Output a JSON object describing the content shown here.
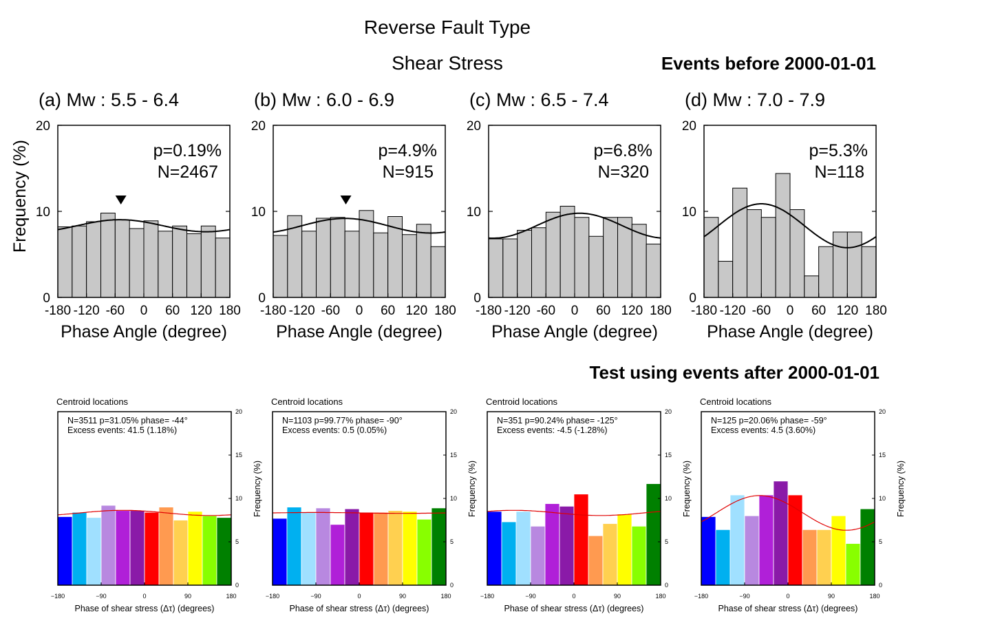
{
  "header": {
    "title": "Reverse Fault Type",
    "subtitle": "Shear Stress",
    "top_note": "Events before 2000-01-01",
    "bottom_note": "Test using events after 2000-01-01"
  },
  "colors": {
    "top_bar_fill": "#c8c8c8",
    "top_curve": "#000000",
    "bottom_curve": "#e00000",
    "bottom_palette": [
      "#0000ff",
      "#00b0f0",
      "#a0e0ff",
      "#b888e0",
      "#b020d8",
      "#8a1aa8",
      "#ff0000",
      "#ff9a50",
      "#ffd050",
      "#ffff00",
      "#88ff00",
      "#008000"
    ]
  },
  "chart_data": [
    {
      "type": "bar",
      "panel": "top",
      "title": "(a) Mw : 5.5 - 6.4",
      "xlabel": "Phase Angle (degree)",
      "ylabel": "Frequency (%)",
      "xlim": [
        -180,
        180
      ],
      "ylim": [
        0,
        20
      ],
      "xticks": [
        "-180",
        "-120",
        "-60",
        "0",
        "60",
        "120",
        "180"
      ],
      "yticks": [
        "0",
        "10",
        "20"
      ],
      "bin_edges_start": -180,
      "bin_width": 30,
      "values": [
        8.2,
        8.3,
        8.8,
        9.8,
        9.0,
        8.0,
        8.9,
        7.7,
        8.3,
        7.4,
        8.3,
        6.9
      ],
      "annotations": [
        "p=0.19%",
        "N=2467"
      ],
      "curve": {
        "mean": 8.33,
        "amplitude": 0.7,
        "peak_phase": -50
      },
      "marker_phase": -48,
      "grid": false,
      "legend": "none"
    },
    {
      "type": "bar",
      "panel": "top",
      "title": "(b) Mw : 6.0 - 6.9",
      "xlabel": "Phase Angle (degree)",
      "ylabel": "",
      "xlim": [
        -180,
        180
      ],
      "ylim": [
        0,
        20
      ],
      "xticks": [
        "-180",
        "-120",
        "-60",
        "0",
        "60",
        "120",
        "180"
      ],
      "yticks": [
        "0",
        "10",
        "20"
      ],
      "bin_edges_start": -180,
      "bin_width": 30,
      "values": [
        7.2,
        9.5,
        7.7,
        9.2,
        9.3,
        7.7,
        10.1,
        7.5,
        9.4,
        7.3,
        8.5,
        5.9
      ],
      "annotations": [
        "p=4.9%",
        "N=915"
      ],
      "curve": {
        "mean": 8.33,
        "amplitude": 0.85,
        "peak_phase": -30
      },
      "marker_phase": -28,
      "grid": false,
      "legend": "none"
    },
    {
      "type": "bar",
      "panel": "top",
      "title": "(c) Mw : 6.5 - 7.4",
      "xlabel": "Phase Angle (degree)",
      "ylabel": "",
      "xlim": [
        -180,
        180
      ],
      "ylim": [
        0,
        20
      ],
      "xticks": [
        "-180",
        "-120",
        "-60",
        "0",
        "60",
        "120",
        "180"
      ],
      "yticks": [
        "0",
        "10",
        "20"
      ],
      "bin_edges_start": -180,
      "bin_width": 30,
      "values": [
        6.8,
        6.8,
        7.8,
        8.1,
        9.9,
        10.6,
        9.3,
        7.1,
        9.3,
        9.3,
        8.5,
        6.2
      ],
      "annotations": [
        "p=6.8%",
        "N=320"
      ],
      "curve": {
        "mean": 8.33,
        "amplitude": 1.45,
        "peak_phase": 10
      },
      "marker_phase": null,
      "grid": false,
      "legend": "none"
    },
    {
      "type": "bar",
      "panel": "top",
      "title": "(d) Mw : 7.0 - 7.9",
      "xlabel": "Phase Angle (degree)",
      "ylabel": "",
      "xlim": [
        -180,
        180
      ],
      "ylim": [
        0,
        20
      ],
      "xticks": [
        "-180",
        "-120",
        "-60",
        "0",
        "60",
        "120",
        "180"
      ],
      "yticks": [
        "0",
        "10",
        "20"
      ],
      "bin_edges_start": -180,
      "bin_width": 30,
      "values": [
        9.3,
        4.2,
        12.7,
        10.2,
        9.3,
        14.4,
        10.2,
        2.5,
        5.9,
        7.6,
        7.6,
        5.9
      ],
      "annotations": [
        "p=5.3%",
        "N=118"
      ],
      "curve": {
        "mean": 8.33,
        "amplitude": 2.55,
        "peak_phase": -60
      },
      "marker_phase": null,
      "grid": false,
      "legend": "none"
    },
    {
      "type": "bar",
      "panel": "bottom",
      "label": "Centroid locations",
      "xlabel": "Phase of shear stress (Δτ) (degrees)",
      "ylabel": "Frequency (%)",
      "xlim": [
        -180,
        180
      ],
      "ylim": [
        0,
        20
      ],
      "xticks": [
        "−180",
        "−90",
        "0",
        "90",
        "180"
      ],
      "yticks": [
        "0",
        "5",
        "10",
        "15",
        "20"
      ],
      "bin_edges_start": -180,
      "bin_width": 30,
      "values": [
        7.9,
        8.4,
        7.8,
        9.2,
        8.6,
        8.6,
        8.4,
        9.0,
        7.5,
        8.5,
        8.0,
        7.8
      ],
      "annotations": [
        "N=3511   p=31.05%   phase= -44°",
        "Excess events: 41.5 (1.18%)"
      ],
      "curve": {
        "mean": 8.33,
        "amplitude": 0.3,
        "peak_phase": -44
      },
      "grid": false,
      "legend": "none"
    },
    {
      "type": "bar",
      "panel": "bottom",
      "label": "Centroid locations",
      "xlabel": "Phase of shear stress (Δτ) (degrees)",
      "ylabel": "Frequency (%)",
      "xlim": [
        -180,
        180
      ],
      "ylim": [
        0,
        20
      ],
      "xticks": [
        "−180",
        "−90",
        "0",
        "90",
        "180"
      ],
      "yticks": [
        "0",
        "5",
        "10",
        "15",
        "20"
      ],
      "bin_edges_start": -180,
      "bin_width": 30,
      "values": [
        7.7,
        9.0,
        8.4,
        8.9,
        7.0,
        8.8,
        8.4,
        8.4,
        8.6,
        8.5,
        7.6,
        8.9
      ],
      "annotations": [
        "N=1103   p=99.77%   phase= -90°",
        "Excess events: 0.5 (0.05%)"
      ],
      "curve": {
        "mean": 8.33,
        "amplitude": 0.05,
        "peak_phase": -90
      },
      "grid": false,
      "legend": "none"
    },
    {
      "type": "bar",
      "panel": "bottom",
      "label": "Centroid locations",
      "xlabel": "Phase of shear stress (Δτ) (degrees)",
      "ylabel": "Frequency (%)",
      "xlim": [
        -180,
        180
      ],
      "ylim": [
        0,
        20
      ],
      "xticks": [
        "−180",
        "−90",
        "0",
        "90",
        "180"
      ],
      "yticks": [
        "0",
        "5",
        "10",
        "15",
        "20"
      ],
      "bin_edges_start": -180,
      "bin_width": 30,
      "values": [
        8.5,
        7.3,
        8.5,
        6.8,
        9.4,
        9.1,
        10.5,
        5.7,
        7.1,
        8.2,
        6.8,
        11.7
      ],
      "annotations": [
        "N=351   p=90.24%   phase= -125°",
        "Excess events: -4.5 (-1.28%)"
      ],
      "curve": {
        "mean": 8.33,
        "amplitude": 0.3,
        "peak_phase": -125
      },
      "grid": false,
      "legend": "none"
    },
    {
      "type": "bar",
      "panel": "bottom",
      "label": "Centroid locations",
      "xlabel": "Phase of shear stress (Δτ) (degrees)",
      "ylabel": "Frequency (%)",
      "xlim": [
        -180,
        180
      ],
      "ylim": [
        0,
        20
      ],
      "xticks": [
        "−180",
        "−90",
        "0",
        "90",
        "180"
      ],
      "yticks": [
        "0",
        "5",
        "10",
        "15",
        "20"
      ],
      "bin_edges_start": -180,
      "bin_width": 30,
      "values": [
        7.9,
        6.4,
        10.4,
        8.0,
        10.4,
        12.0,
        10.4,
        6.4,
        6.4,
        8.0,
        4.8,
        8.8
      ],
      "annotations": [
        "N=125   p=20.06%   phase= -59°",
        "Excess events: 4.5 (3.60%)"
      ],
      "curve": {
        "mean": 8.33,
        "amplitude": 2.0,
        "peak_phase": -59
      },
      "grid": false,
      "legend": "none"
    }
  ]
}
